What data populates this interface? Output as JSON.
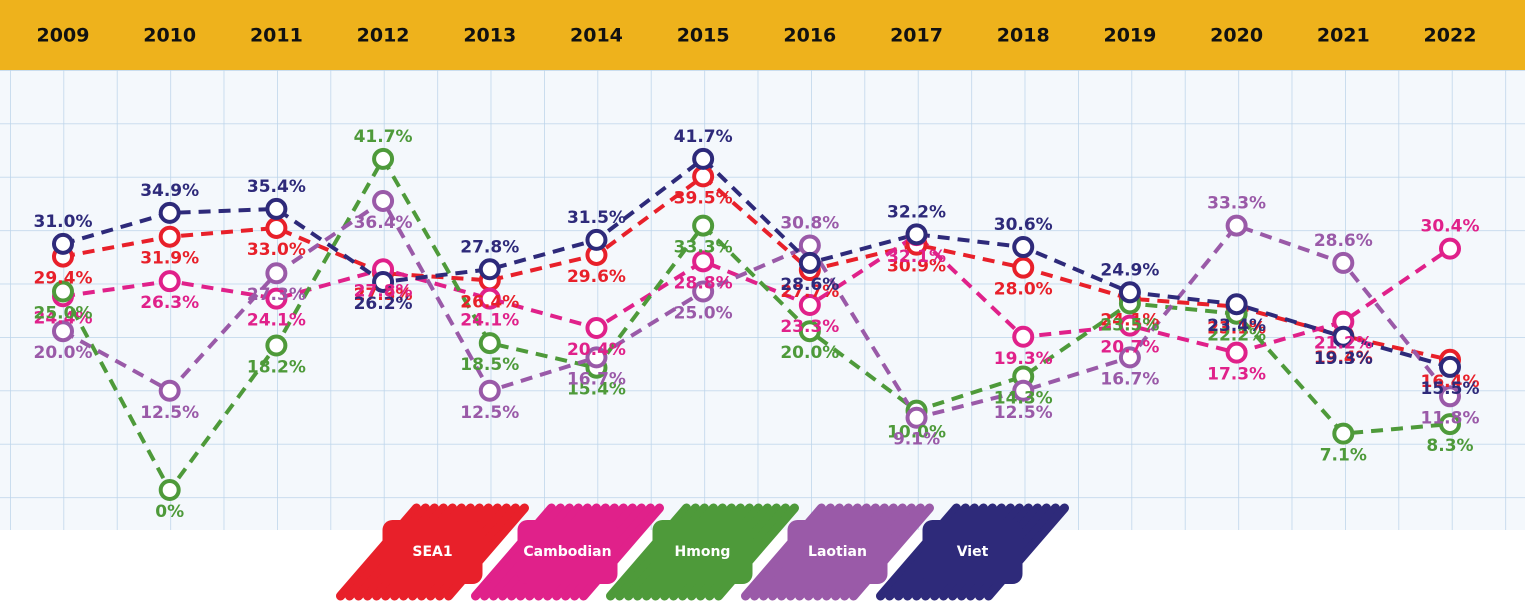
{
  "chart_data": {
    "type": "line",
    "categories": [
      "2009",
      "2010",
      "2011",
      "2012",
      "2013",
      "2014",
      "2015",
      "2016",
      "2017",
      "2018",
      "2019",
      "2020",
      "2021",
      "2022"
    ],
    "ylim": [
      0,
      50
    ],
    "series": [
      {
        "name": "SEA1",
        "color": "#e8202a",
        "values": [
          29.4,
          31.9,
          33.0,
          27.3,
          26.4,
          29.6,
          39.5,
          27.7,
          30.9,
          28.0,
          24.1,
          23.1,
          19.4,
          16.4
        ],
        "value_labels": [
          "29.4%",
          "31.9%",
          "33.0%",
          "27.3%",
          "26.4%",
          "29.6%",
          "39.5%",
          "27.7%",
          "30.9%",
          "28.0%",
          "24.1%",
          "23.1%",
          "19.4%",
          "16.4%"
        ]
      },
      {
        "name": "Cambodian",
        "color": "#e0218a",
        "values": [
          24.4,
          26.3,
          24.1,
          27.8,
          24.1,
          20.4,
          28.8,
          23.3,
          32.1,
          19.3,
          20.7,
          17.3,
          21.2,
          30.4
        ],
        "value_labels": [
          "24.4%",
          "26.3%",
          "24.1%",
          "27.8%",
          "24.1%",
          "20.4%",
          "28.8%",
          "23.3%",
          "32.1%",
          "19.3%",
          "20.7%",
          "17.3%",
          "21.2%",
          "30.4%"
        ]
      },
      {
        "name": "Hmong",
        "color": "#4e9a3a",
        "values": [
          25.0,
          0,
          18.2,
          41.7,
          18.5,
          15.4,
          33.3,
          20.0,
          10.0,
          14.3,
          23.5,
          22.2,
          7.1,
          8.3
        ],
        "value_labels": [
          "25.0%",
          "0%",
          "18.2%",
          "41.7%",
          "18.5%",
          "15.4%",
          "33.3%",
          "20.0%",
          "10.0%",
          "14.3%",
          "23.5%",
          "22.2%",
          "7.1%",
          "8.3%"
        ]
      },
      {
        "name": "Laotian",
        "color": "#9a5aa8",
        "values": [
          20.0,
          12.5,
          27.3,
          36.4,
          12.5,
          16.7,
          25.0,
          30.8,
          9.1,
          12.5,
          16.7,
          33.3,
          28.6,
          11.8
        ],
        "value_labels": [
          "20.0%",
          "12.5%",
          "27.3%",
          "36.4%",
          "12.5%",
          "16.7%",
          "25.0%",
          "30.8%",
          "9.1%",
          "12.5%",
          "16.7%",
          "33.3%",
          "28.6%",
          "11.8%"
        ]
      },
      {
        "name": "Viet",
        "color": "#2e2a7a",
        "values": [
          31.0,
          34.9,
          35.4,
          26.2,
          27.8,
          31.5,
          41.7,
          28.6,
          32.2,
          30.6,
          24.9,
          23.4,
          19.3,
          15.5
        ],
        "value_labels": [
          "31.0%",
          "34.9%",
          "35.4%",
          "26.2%",
          "27.8%",
          "31.5%",
          "41.7%",
          "28.6%",
          "32.2%",
          "30.6%",
          "24.9%",
          "23.4%",
          "19.3%",
          "15.5%"
        ]
      }
    ]
  }
}
